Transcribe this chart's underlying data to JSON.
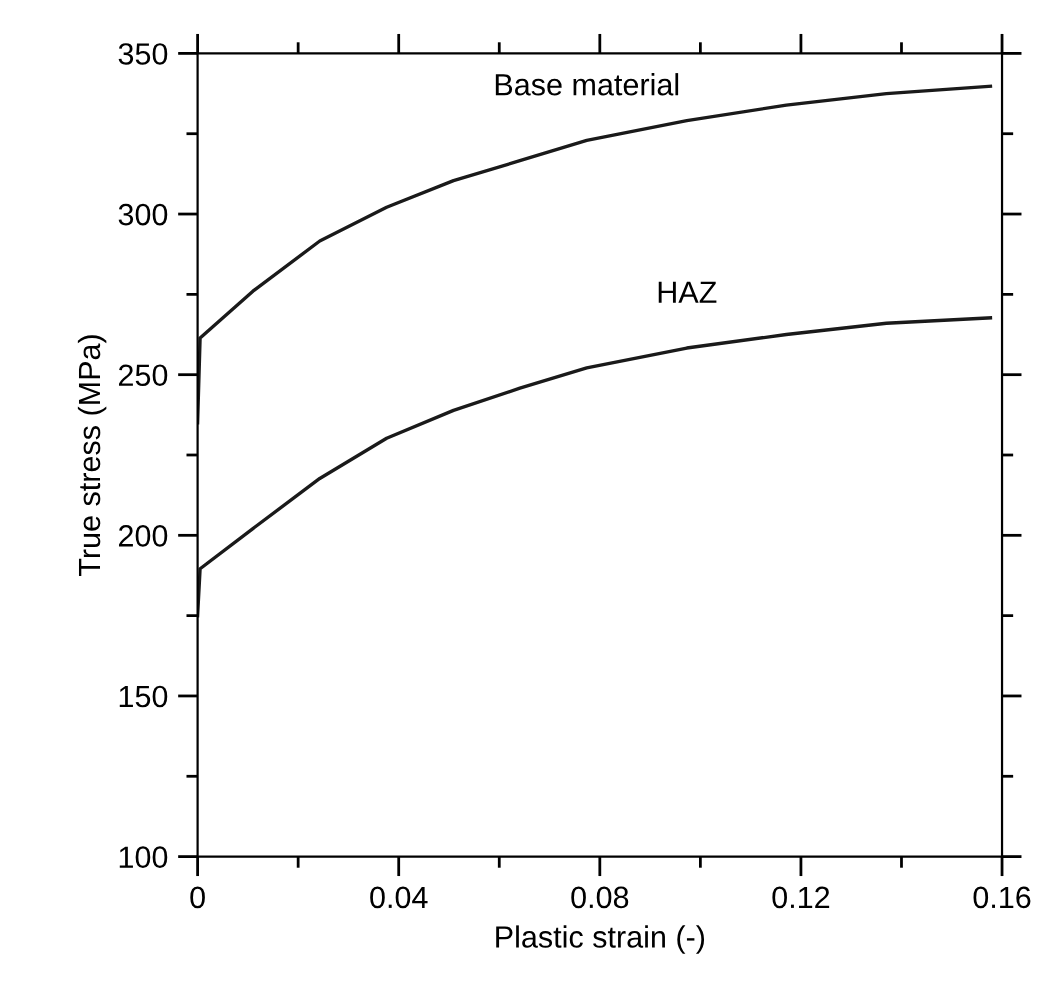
{
  "chart_data": {
    "type": "line",
    "xlabel": "Plastic strain (-)",
    "ylabel": "True stress (MPa)",
    "xlim": [
      0,
      0.16
    ],
    "xticks": [
      0,
      0.04,
      0.08,
      0.12,
      0.16
    ],
    "ylim": [
      100,
      350
    ],
    "yticks": [
      100,
      150,
      200,
      250,
      300,
      350
    ],
    "grid": false,
    "legend": false,
    "series": [
      {
        "name": "Base material",
        "color": "#1a1a1a",
        "x": [
          0,
          0.0005,
          0.011,
          0.0243,
          0.0376,
          0.0509,
          0.0641,
          0.0774,
          0.0973,
          0.1171,
          0.137,
          0.1577
        ],
        "values": [
          235,
          261.4,
          276.0,
          291.6,
          302.1,
          310.4,
          316.6,
          322.9,
          329.1,
          333.9,
          337.5,
          339.8
        ]
      },
      {
        "name": "HAZ",
        "color": "#1a1a1a",
        "x": [
          0,
          0.0005,
          0.011,
          0.0243,
          0.0376,
          0.0509,
          0.0641,
          0.0774,
          0.0973,
          0.1171,
          0.137,
          0.1577
        ],
        "values": [
          175,
          189.6,
          202.1,
          217.7,
          230.2,
          238.9,
          245.8,
          252.1,
          258.3,
          262.5,
          266.0,
          267.7
        ]
      }
    ]
  }
}
